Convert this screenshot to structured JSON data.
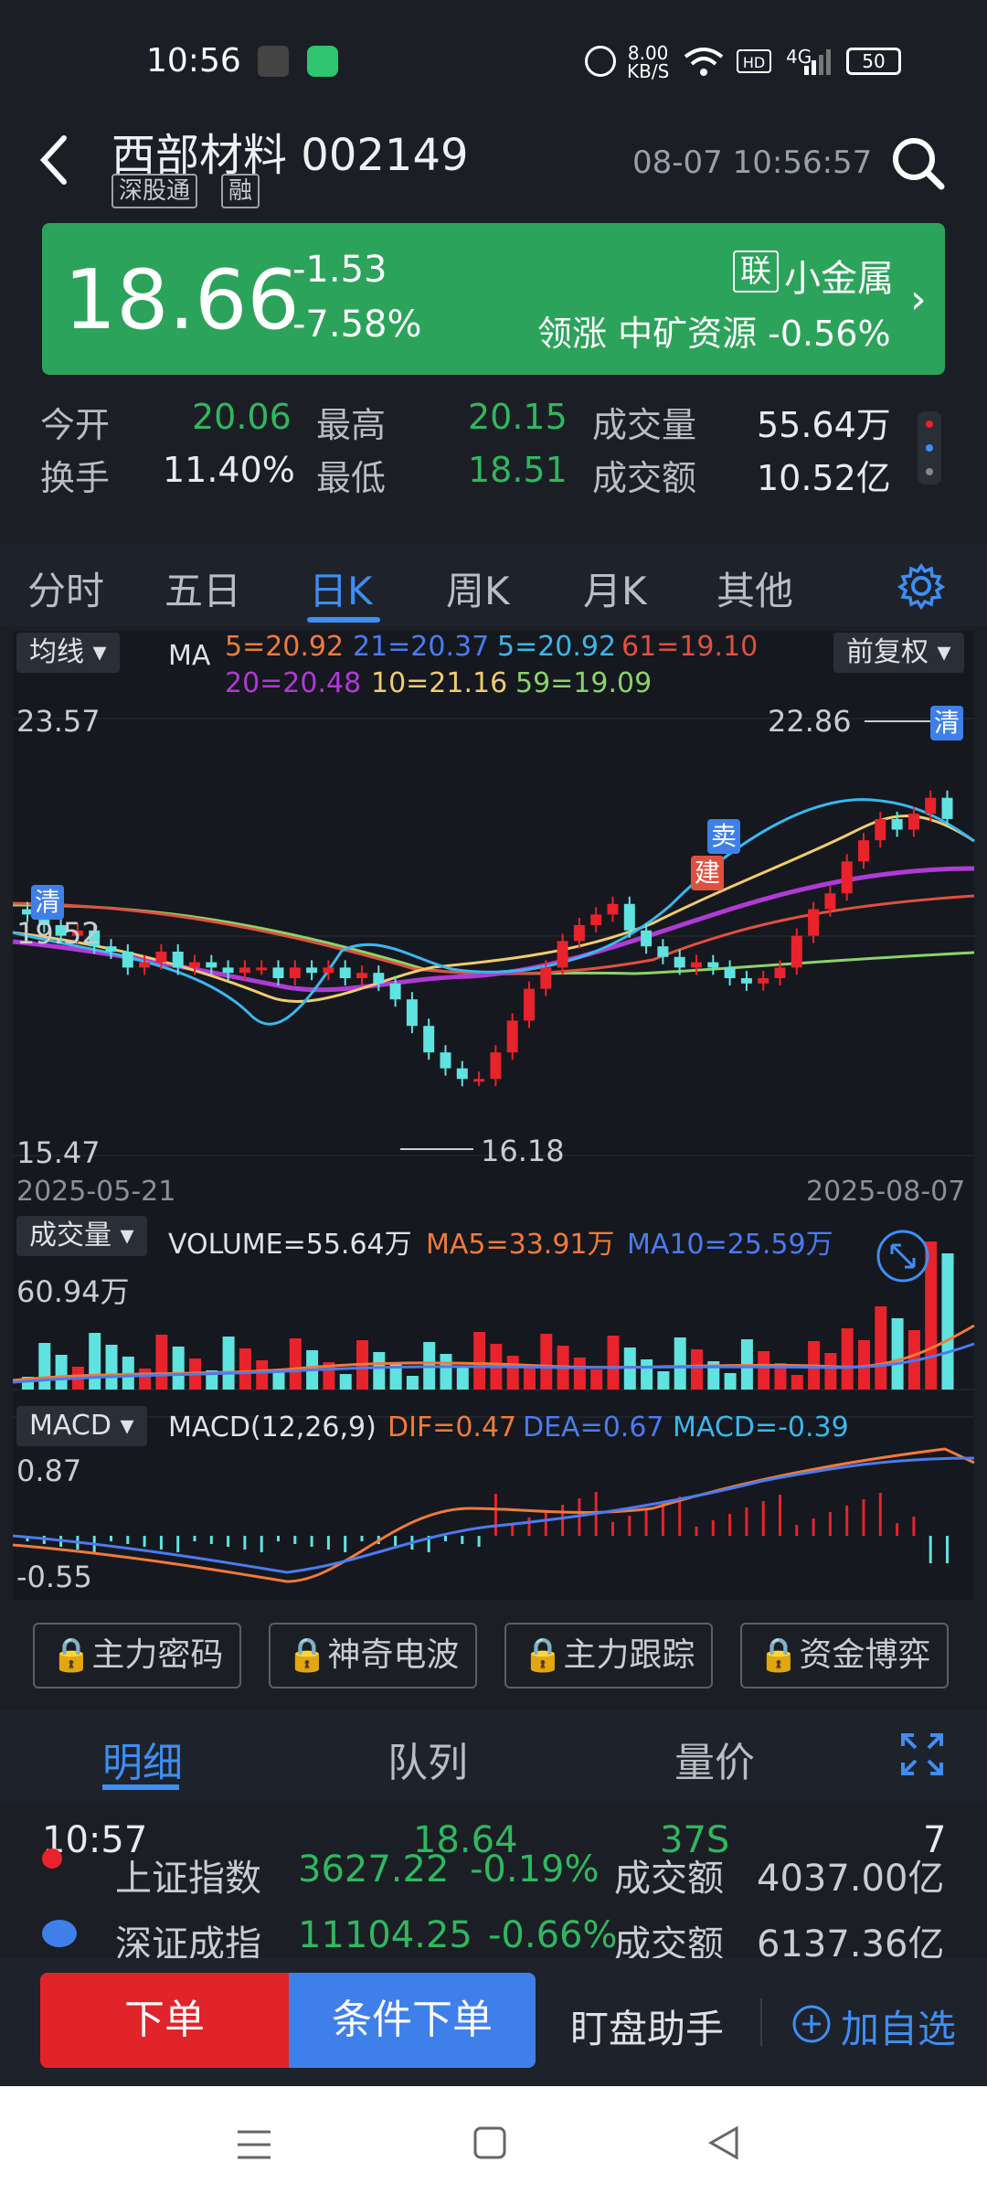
{
  "status": {
    "time": "10:56",
    "net_speed": "8.00\nKB/S",
    "network": "4G",
    "battery": "50"
  },
  "header": {
    "name": "西部材料",
    "code": "002149",
    "tag1": "深股通",
    "tag2": "融",
    "datetime": "08-07 10:56:57"
  },
  "quote": {
    "price": "18.66",
    "change": "-1.53",
    "change_pct": "-7.58%",
    "sector_badge": "联",
    "sector": "小金属",
    "leader": "领涨 中矿资源 -0.56%"
  },
  "stats": {
    "open_label": "今开",
    "open": "20.06",
    "high_label": "最高",
    "high": "20.15",
    "vol_label": "成交量",
    "vol": "55.64万",
    "turn_label": "换手",
    "turn": "11.40%",
    "low_label": "最低",
    "low": "18.51",
    "amt_label": "成交额",
    "amt": "10.52亿"
  },
  "tabs": [
    "分时",
    "五日",
    "日K",
    "周K",
    "月K",
    "其他"
  ],
  "kline": {
    "indicator_dd": "均线",
    "ma_label": "MA",
    "adjust_dd": "前复权",
    "ma5": "5=20.92",
    "ma21": "21=20.37",
    "ma5b": "5=20.92",
    "ma61": "61=19.10",
    "ma20": "20=20.48",
    "ma10": "10=21.16",
    "ma59": "59=19.09",
    "y_top": "23.57",
    "y_mid": "19.52",
    "y_bot": "15.47",
    "high_mark": "22.86",
    "low_mark": "16.18",
    "date_start": "2025-05-21",
    "date_end": "2025-08-07",
    "mark_clear": "清",
    "mark_sell": "卖",
    "mark_build": "建"
  },
  "volume": {
    "dd": "成交量",
    "vol": "VOLUME=55.64万",
    "ma5": "MA5=33.91万",
    "ma10": "MA10=25.59万",
    "y_top": "60.94万"
  },
  "macd": {
    "dd": "MACD",
    "params": "MACD(12,26,9)",
    "dif": "DIF=0.47",
    "dea": "DEA=0.67",
    "macd": "MACD=-0.39",
    "y_top": "0.87",
    "y_bot": "-0.55"
  },
  "features": [
    "主力密码",
    "神奇电波",
    "主力跟踪",
    "资金博弈"
  ],
  "bottom_tabs": [
    "明细",
    "队列",
    "量价"
  ],
  "detail": {
    "time": "10:57",
    "price": "18.64",
    "vol": "37S",
    "count": "7"
  },
  "indices": [
    {
      "name": "上证指数",
      "value": "3627.22",
      "pct": "-0.19%",
      "amt_label": "成交额",
      "amt": "4037.00亿"
    },
    {
      "name": "深证成指",
      "value": "11104.25",
      "pct": "-0.66%",
      "amt_label": "成交额",
      "amt": "6137.36亿"
    }
  ],
  "actions": {
    "order": "下单",
    "cond_order": "条件下单",
    "assist": "盯盘助手",
    "add": "加自选"
  },
  "colors": {
    "up": "#e8232b",
    "down": "#5fe3e0",
    "green": "#2ca35a",
    "accent": "#3f8ef2"
  }
}
